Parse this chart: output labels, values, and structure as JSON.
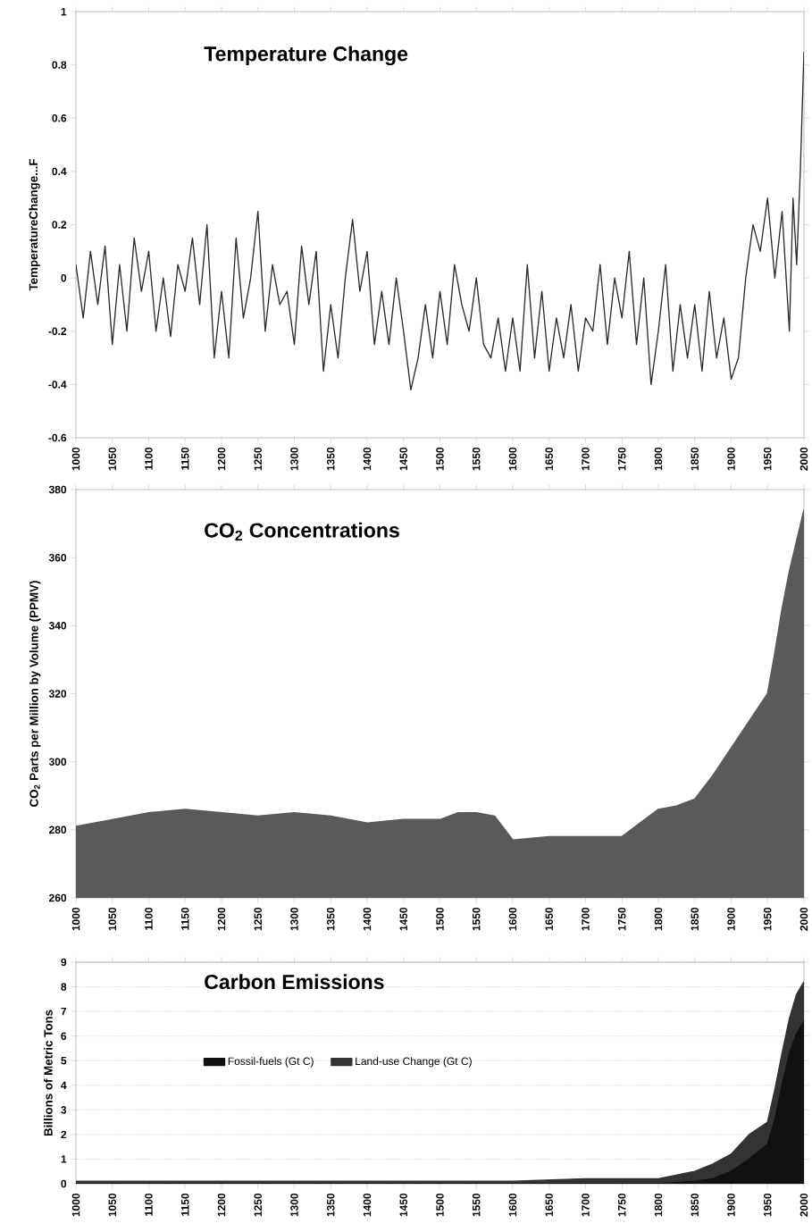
{
  "chart_data": [
    {
      "type": "line",
      "title": "Temperature Change",
      "ylabel": "TemperatureChange...F",
      "color": "#2a2a2a",
      "x": [
        1000,
        1010,
        1020,
        1030,
        1040,
        1050,
        1060,
        1070,
        1080,
        1090,
        1100,
        1110,
        1120,
        1130,
        1140,
        1150,
        1160,
        1170,
        1180,
        1190,
        1200,
        1210,
        1220,
        1230,
        1240,
        1250,
        1260,
        1270,
        1280,
        1290,
        1300,
        1310,
        1320,
        1330,
        1340,
        1350,
        1360,
        1370,
        1380,
        1390,
        1400,
        1410,
        1420,
        1430,
        1440,
        1450,
        1460,
        1470,
        1480,
        1490,
        1500,
        1510,
        1520,
        1530,
        1540,
        1550,
        1560,
        1570,
        1580,
        1590,
        1600,
        1610,
        1620,
        1630,
        1640,
        1650,
        1660,
        1670,
        1680,
        1690,
        1700,
        1710,
        1720,
        1730,
        1740,
        1750,
        1760,
        1770,
        1780,
        1790,
        1800,
        1810,
        1820,
        1830,
        1840,
        1850,
        1860,
        1870,
        1880,
        1890,
        1900,
        1910,
        1920,
        1930,
        1940,
        1950,
        1960,
        1970,
        1980,
        1985,
        1990,
        1995,
        2000
      ],
      "values": [
        0.05,
        -0.15,
        0.1,
        -0.1,
        0.12,
        -0.25,
        0.05,
        -0.2,
        0.15,
        -0.05,
        0.1,
        -0.2,
        0,
        -0.22,
        0.05,
        -0.05,
        0.15,
        -0.1,
        0.2,
        -0.3,
        -0.05,
        -0.3,
        0.15,
        -0.15,
        0,
        0.25,
        -0.2,
        0.05,
        -0.1,
        -0.05,
        -0.25,
        0.12,
        -0.1,
        0.1,
        -0.35,
        -0.1,
        -0.3,
        0,
        0.22,
        -0.05,
        0.1,
        -0.25,
        -0.05,
        -0.25,
        0,
        -0.2,
        -0.42,
        -0.3,
        -0.1,
        -0.3,
        -0.05,
        -0.25,
        0.05,
        -0.1,
        -0.2,
        0,
        -0.25,
        -0.3,
        -0.15,
        -0.35,
        -0.15,
        -0.35,
        0.05,
        -0.3,
        -0.05,
        -0.35,
        -0.15,
        -0.3,
        -0.1,
        -0.35,
        -0.15,
        -0.2,
        0.05,
        -0.25,
        0,
        -0.15,
        0.1,
        -0.25,
        0,
        -0.4,
        -0.2,
        0.05,
        -0.35,
        -0.1,
        -0.3,
        -0.1,
        -0.35,
        -0.05,
        -0.3,
        -0.15,
        -0.38,
        -0.3,
        0,
        0.2,
        0.1,
        0.3,
        0,
        0.25,
        -0.2,
        0.3,
        0.05,
        0.4,
        0.85
      ],
      "xlim": [
        1000,
        2000
      ],
      "xticks": [
        1000,
        1050,
        1100,
        1150,
        1200,
        1250,
        1300,
        1350,
        1400,
        1450,
        1500,
        1550,
        1600,
        1650,
        1700,
        1750,
        1800,
        1850,
        1900,
        1950,
        2000
      ],
      "ylim": [
        -0.6,
        1
      ],
      "yticks": [
        -0.6,
        -0.4,
        -0.2,
        0,
        0.2,
        0.4,
        0.6,
        0.8,
        1
      ]
    },
    {
      "type": "area",
      "title": "CO$_{2}$ Concentrations",
      "ylabel": "CO$_{2}$ Parts per Million by Volume (PPMV)",
      "color": "#5a5a5a",
      "x": [
        1000,
        1050,
        1100,
        1150,
        1200,
        1250,
        1300,
        1350,
        1400,
        1450,
        1500,
        1525,
        1550,
        1575,
        1600,
        1650,
        1700,
        1750,
        1775,
        1800,
        1825,
        1850,
        1875,
        1900,
        1925,
        1950,
        1960,
        1970,
        1980,
        1990,
        2000
      ],
      "values": [
        281,
        283,
        285,
        286,
        285,
        284,
        285,
        284,
        282,
        283,
        283,
        285,
        285,
        284,
        277,
        278,
        278,
        278,
        282,
        286,
        287,
        289,
        296,
        304,
        312,
        320,
        332,
        345,
        356,
        365,
        374
      ],
      "xlim": [
        1000,
        2000
      ],
      "xticks": [
        1000,
        1050,
        1100,
        1150,
        1200,
        1250,
        1300,
        1350,
        1400,
        1450,
        1500,
        1550,
        1600,
        1650,
        1700,
        1750,
        1800,
        1850,
        1900,
        1950,
        2000
      ],
      "ylim": [
        260,
        380
      ],
      "yticks": [
        260,
        280,
        300,
        320,
        340,
        360,
        380
      ]
    },
    {
      "type": "area",
      "title": "Carbon Emissions",
      "ylabel": "Billions of Metric Tons",
      "stacked": true,
      "legend": "left",
      "grid": "y",
      "x": [
        1000,
        1200,
        1400,
        1600,
        1700,
        1750,
        1800,
        1850,
        1875,
        1900,
        1925,
        1950,
        1960,
        1970,
        1980,
        1990,
        2000
      ],
      "series": [
        {
          "name": "Fossil-fuels (Gt C)",
          "color": "#111111",
          "values": [
            0,
            0,
            0,
            0,
            0,
            0,
            0,
            0.1,
            0.2,
            0.5,
            1,
            1.6,
            2.6,
            4,
            5.3,
            6.1,
            6.6
          ]
        },
        {
          "name": "Land-use Change (Gt C)",
          "color": "#333333",
          "values": [
            0.1,
            0.1,
            0.1,
            0.1,
            0.2,
            0.2,
            0.2,
            0.4,
            0.6,
            0.7,
            1,
            0.9,
            1.2,
            1.3,
            1.4,
            1.6,
            1.6
          ]
        }
      ],
      "xlim": [
        1000,
        2000
      ],
      "xticks": [
        1000,
        1050,
        1100,
        1150,
        1200,
        1250,
        1300,
        1350,
        1400,
        1450,
        1500,
        1550,
        1600,
        1650,
        1700,
        1750,
        1800,
        1850,
        1900,
        1950,
        2000
      ],
      "ylim": [
        0,
        9
      ],
      "yticks": [
        0,
        1,
        2,
        3,
        4,
        5,
        6,
        7,
        8,
        9
      ]
    }
  ]
}
